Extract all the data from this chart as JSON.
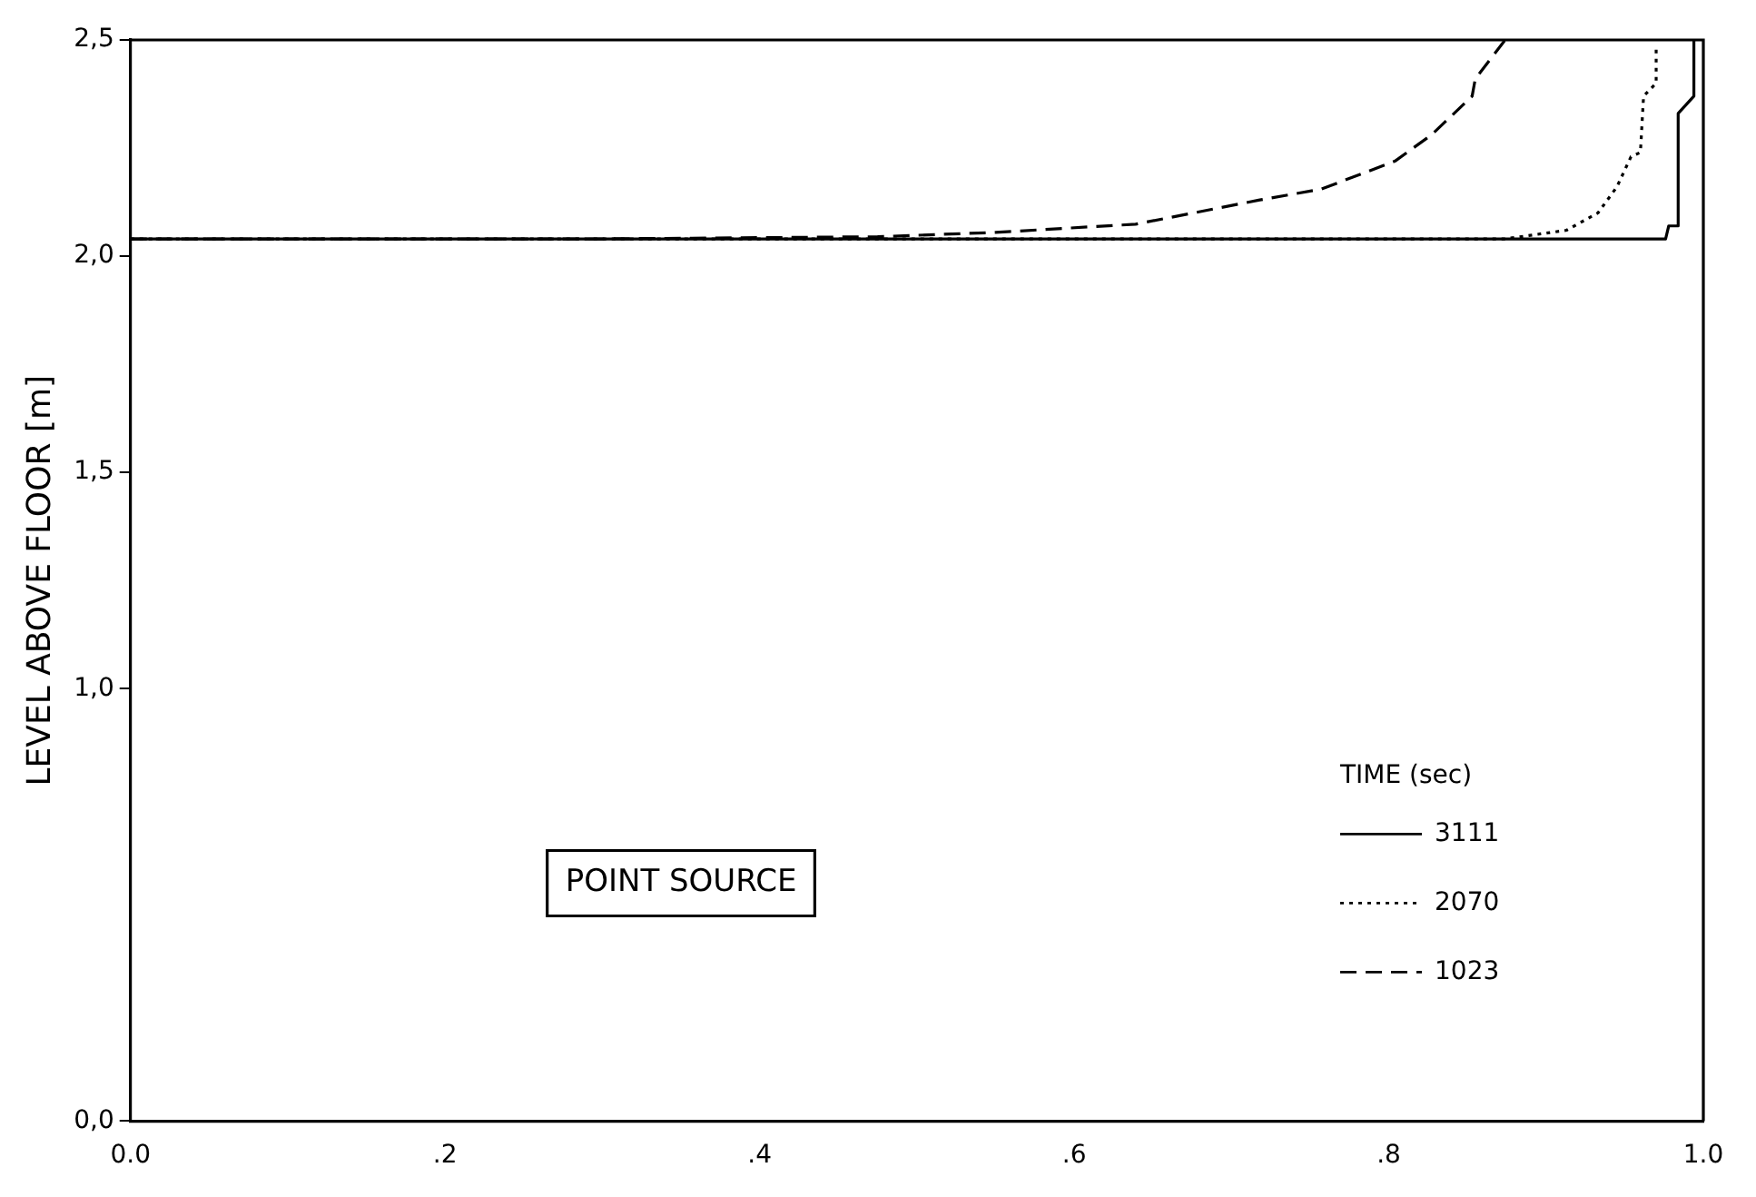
{
  "chart_data": {
    "type": "line",
    "ylabel": "LEVEL ABOVE FLOOR [m]",
    "legend_title": "TIME (sec)",
    "legend": "bottom right",
    "grid": false,
    "marker": "none",
    "annotations": [
      "POINT SOURCE"
    ],
    "xlim": [
      0,
      1.0
    ],
    "xticks": [
      {
        "value": 0,
        "label": "0.0"
      },
      {
        "value": 0.2,
        "label": ".2"
      },
      {
        "value": 0.4,
        "label": ".4"
      },
      {
        "value": 0.6,
        "label": ".6"
      },
      {
        "value": 0.8,
        "label": ".8"
      },
      {
        "value": 1.0,
        "label": "1.0"
      }
    ],
    "ylim": [
      0,
      2.5
    ],
    "yticks": [
      {
        "value": 0,
        "label": "0,0"
      },
      {
        "value": 1.0,
        "label": "1,0"
      },
      {
        "value": 1.5,
        "label": "1,5"
      },
      {
        "value": 2.0,
        "label": "2,0"
      },
      {
        "value": 2.5,
        "label": "2,5"
      }
    ],
    "series": [
      {
        "name": "3111",
        "color": "#000000",
        "line_style": "solid",
        "x": [
          0,
          0.976,
          0.978,
          0.984,
          0.984,
          0.994,
          0.994
        ],
        "values": [
          2.04,
          2.04,
          2.07,
          2.07,
          2.33,
          2.37,
          2.5
        ]
      },
      {
        "name": "2070",
        "color": "#000000",
        "line_style": "dotted",
        "x": [
          0,
          0.874,
          0.913,
          0.933,
          0.945,
          0.954,
          0.96,
          0.962,
          0.97,
          0.97
        ],
        "values": [
          2.04,
          2.04,
          2.06,
          2.1,
          2.16,
          2.23,
          2.24,
          2.37,
          2.4,
          2.49
        ]
      },
      {
        "name": "1023",
        "color": "#000000",
        "line_style": "dashed",
        "x": [
          0,
          0.3,
          0.475,
          0.55,
          0.639,
          0.718,
          0.757,
          0.804,
          0.827,
          0.853,
          0.855,
          0.874
        ],
        "values": [
          2.04,
          2.04,
          2.045,
          2.055,
          2.074,
          2.13,
          2.155,
          2.22,
          2.28,
          2.37,
          2.41,
          2.5
        ]
      }
    ]
  }
}
